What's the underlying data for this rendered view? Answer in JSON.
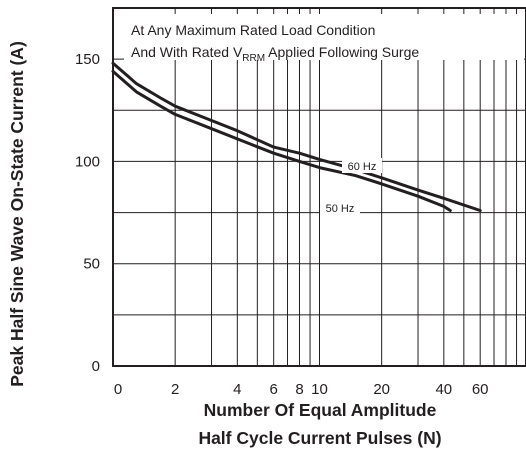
{
  "chart_data": {
    "type": "line",
    "title": "",
    "xlabel_lines": [
      "Number Of Equal Amplitude",
      "Half Cycle Current Pulses (N)"
    ],
    "ylabel": "Peak Half Sine Wave On-State Current (A)",
    "x_scale": "log(N)",
    "xlim": [
      1,
      100
    ],
    "ylim": [
      0,
      175
    ],
    "x_tick_labels": [
      "0",
      "2",
      "4",
      "6",
      "8",
      "10",
      "20",
      "40",
      "60"
    ],
    "y_ticks": [
      0,
      50,
      100,
      150
    ],
    "grid": true,
    "annotation": {
      "line1": "At Any Maximum Rated Load Condition",
      "line2_before": "And With Rated V",
      "line2_sub": "RRM",
      "line2_after": " Applied Following Surge"
    },
    "series": [
      {
        "name": "60 Hz",
        "x": [
          1,
          1.3,
          1.7,
          2,
          3,
          4,
          6,
          8,
          10,
          15,
          20,
          30,
          40,
          60
        ],
        "y": [
          148,
          138,
          131,
          127,
          120,
          115,
          107,
          104,
          101,
          96,
          92,
          86,
          82,
          76
        ]
      },
      {
        "name": "50 Hz",
        "x": [
          1,
          1.3,
          1.7,
          2,
          3,
          4,
          6,
          8,
          10,
          15,
          20,
          30,
          40,
          43
        ],
        "y": [
          144,
          134,
          127,
          123,
          116,
          111,
          104,
          100,
          97,
          93,
          89,
          83,
          78,
          76
        ]
      }
    ]
  }
}
